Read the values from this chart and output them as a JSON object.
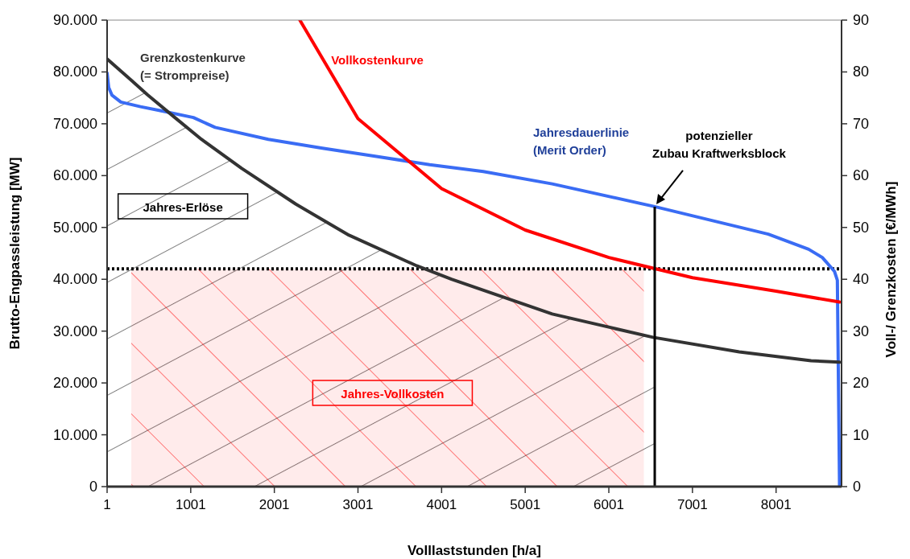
{
  "chart_data": {
    "type": "line",
    "xlabel": "Volllaststunden [h/a]",
    "ylabel": "Brutto-Engpassleistung [MW]",
    "y2label": "Voll-/ Grenzkosten [€/MWh]",
    "xlim": [
      1,
      8784
    ],
    "xticks": [
      1,
      1001,
      2001,
      3001,
      4001,
      5001,
      6001,
      7001,
      8001
    ],
    "ylim": [
      0,
      90000
    ],
    "yticks": [
      {
        "value": 0,
        "label": "0"
      },
      {
        "value": 10000,
        "label": "10.000"
      },
      {
        "value": 20000,
        "label": "20.000"
      },
      {
        "value": 30000,
        "label": "30.000"
      },
      {
        "value": 40000,
        "label": "40.000"
      },
      {
        "value": 50000,
        "label": "50.000"
      },
      {
        "value": 60000,
        "label": "60.000"
      },
      {
        "value": 70000,
        "label": "70.000"
      },
      {
        "value": 80000,
        "label": "80.000"
      },
      {
        "value": 90000,
        "label": "90.000"
      }
    ],
    "y2lim": [
      0,
      90
    ],
    "y2ticks": [
      0,
      10,
      20,
      30,
      40,
      50,
      60,
      70,
      80,
      90
    ],
    "marker": "none",
    "series": [
      {
        "name": "Jahresdauerlinie (Merit Order)",
        "color": "#3a6cf4",
        "x": [
          1,
          20,
          60,
          165,
          400,
          647,
          1033,
          1293,
          1929,
          2576,
          3222,
          3858,
          4500,
          5324,
          6529,
          7908,
          8390,
          8554,
          8700,
          8734,
          8760
        ],
        "values": [
          79800,
          77000,
          75500,
          74200,
          73300,
          72500,
          71200,
          69300,
          67000,
          65300,
          63700,
          62100,
          60800,
          58400,
          54100,
          48700,
          45800,
          44200,
          41500,
          39800,
          0
        ]
      },
      {
        "name": "Grenzkostenkurve (= Strompreise)",
        "color": "#333333",
        "axis": "y2",
        "x": [
          1,
          290,
          483,
          811,
          1129,
          1611,
          2258,
          2894,
          3704,
          4119,
          5324,
          6529,
          7561,
          8420,
          8760
        ],
        "values": [
          82.5,
          78.4,
          75.6,
          71.2,
          67.0,
          61.4,
          54.5,
          48.5,
          42.6,
          40.0,
          33.3,
          28.8,
          26.0,
          24.3,
          24.0
        ]
      },
      {
        "name": "Vollkostenkurve",
        "color": "#ff0000",
        "axis": "y2",
        "x": [
          2306,
          3001,
          4001,
          5001,
          6001,
          7001,
          8001,
          8760
        ],
        "values": [
          90,
          71,
          57.5,
          49.5,
          44.2,
          40.3,
          37.7,
          35.6
        ]
      }
    ],
    "ref_lines": [
      {
        "axis": "y2",
        "value": 42,
        "color": "#000000",
        "line_style": "dotted"
      },
      {
        "axis": "x",
        "value": 6550,
        "label": "potenzieller Zubau Kraftwerksblock",
        "color": "#000000",
        "line_style": "solid"
      }
    ],
    "bands": [
      {
        "axis": "x",
        "from": 1,
        "to": 6550,
        "label": "Jahres-Erlöse",
        "color": "#000000"
      },
      {
        "axis": "x",
        "from": 290,
        "to": 6420,
        "label": "Jahres-Vollkosten",
        "color": "#ff0000"
      }
    ]
  }
}
